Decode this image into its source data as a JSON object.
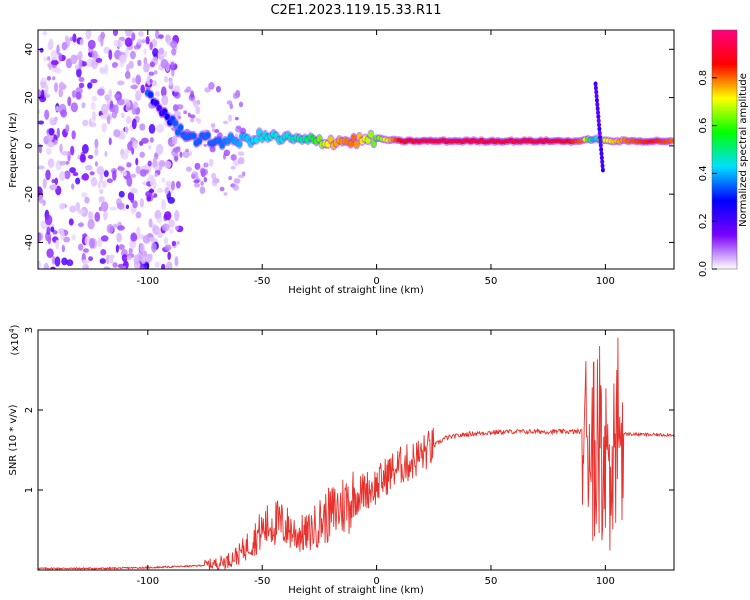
{
  "title": "C2E1.2023.119.15.33.R11",
  "chart_data": [
    {
      "type": "heatmap",
      "xlabel": "Height of straight line (km)",
      "ylabel": "Frequency (Hz)",
      "xlim": [
        -148,
        130
      ],
      "ylim": [
        -51,
        48
      ],
      "xticks": [
        -100,
        -50,
        0,
        50,
        100
      ],
      "yticks": [
        -40,
        -20,
        0,
        20,
        40
      ],
      "colorbar": {
        "label": "Normalized spectral amplitude",
        "range": [
          0,
          1
        ],
        "ticks": [
          0.0,
          0.2,
          0.4,
          0.6,
          0.8
        ],
        "colors": [
          "#ffffff",
          "#7a00ff",
          "#0000ff",
          "#00e0ff",
          "#00ff00",
          "#ffff00",
          "#ff0000",
          "#ff0080"
        ]
      },
      "ridge": [
        {
          "x": -100,
          "y": 22,
          "v": 0.35
        },
        {
          "x": -95,
          "y": 16,
          "v": 0.2
        },
        {
          "x": -88,
          "y": 8,
          "v": 0.35
        },
        {
          "x": -80,
          "y": 3,
          "v": 0.35
        },
        {
          "x": -70,
          "y": 2,
          "v": 0.35
        },
        {
          "x": -60,
          "y": 2,
          "v": 0.4
        },
        {
          "x": -50,
          "y": 4,
          "v": 0.45
        },
        {
          "x": -40,
          "y": 3,
          "v": 0.45
        },
        {
          "x": -30,
          "y": 2,
          "v": 0.5
        },
        {
          "x": -20,
          "y": 2,
          "v": 0.75
        },
        {
          "x": -10,
          "y": 2,
          "v": 0.8
        },
        {
          "x": 0,
          "y": 3,
          "v": 0.6
        },
        {
          "x": 10,
          "y": 2,
          "v": 0.85
        },
        {
          "x": 20,
          "y": 2,
          "v": 0.9
        },
        {
          "x": 40,
          "y": 2,
          "v": 0.9
        },
        {
          "x": 60,
          "y": 2,
          "v": 0.9
        },
        {
          "x": 80,
          "y": 2,
          "v": 0.9
        },
        {
          "x": 90,
          "y": 2,
          "v": 0.8
        },
        {
          "x": 95,
          "y": 3,
          "v": 0.4
        },
        {
          "x": 100,
          "y": 2,
          "v": 0.7
        },
        {
          "x": 110,
          "y": 2,
          "v": 0.8
        },
        {
          "x": 120,
          "y": 2,
          "v": 0.85
        },
        {
          "x": 130,
          "y": 2,
          "v": 0.8
        }
      ]
    },
    {
      "type": "line",
      "xlabel": "Height of straight line (km)",
      "ylabel": "SNR (10 * v/v)",
      "yscale_label": "(x10",
      "yscale_exp": "4",
      "xlim": [
        -148,
        130
      ],
      "ylim": [
        0,
        3
      ],
      "xticks": [
        -100,
        -50,
        0,
        50,
        100
      ],
      "yticks": [
        1,
        2,
        3
      ],
      "color": "#e8312c",
      "x": [
        -148,
        -120,
        -100,
        -90,
        -80,
        -75,
        -70,
        -65,
        -60,
        -55,
        -50,
        -45,
        -40,
        -35,
        -30,
        -25,
        -20,
        -15,
        -10,
        -5,
        0,
        5,
        10,
        15,
        20,
        25,
        30,
        40,
        50,
        60,
        70,
        80,
        90,
        95,
        98,
        100,
        102,
        104,
        106,
        110,
        120,
        130
      ],
      "y": [
        0.02,
        0.02,
        0.03,
        0.04,
        0.05,
        0.06,
        0.08,
        0.12,
        0.2,
        0.35,
        0.5,
        0.6,
        0.55,
        0.45,
        0.45,
        0.6,
        0.7,
        0.8,
        0.9,
        1.0,
        1.05,
        1.2,
        1.3,
        1.35,
        1.45,
        1.55,
        1.65,
        1.7,
        1.72,
        1.73,
        1.73,
        1.73,
        1.73,
        1.7,
        1.5,
        1.2,
        1.8,
        1.5,
        1.7,
        1.7,
        1.69,
        1.69
      ]
    }
  ]
}
